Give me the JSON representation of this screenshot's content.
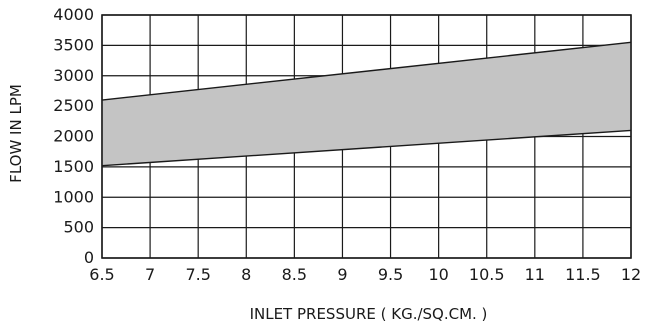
{
  "chart_data": {
    "type": "area",
    "title": "",
    "xlabel": "INLET PRESSURE ( KG./SQ.CM. )",
    "ylabel": "FLOW IN LPM",
    "xlim": [
      6.5,
      12
    ],
    "ylim": [
      0,
      4000
    ],
    "x_ticks": [
      6.5,
      7,
      7.5,
      8,
      8.5,
      9,
      9.5,
      10,
      10.5,
      11,
      11.5,
      12
    ],
    "x_tick_labels": [
      "6.5",
      "7",
      "7.5",
      "8",
      "8.5",
      "9",
      "9.5",
      "10",
      "10.5",
      "11",
      "11.5",
      "12"
    ],
    "y_ticks": [
      0,
      500,
      1000,
      1500,
      2000,
      2500,
      3000,
      3500,
      4000
    ],
    "y_tick_labels": [
      "0",
      "500",
      "1000",
      "1500",
      "2000",
      "2500",
      "3000",
      "3500",
      "4000"
    ],
    "grid": true,
    "legend": "none",
    "band": {
      "x": [
        6.5,
        12
      ],
      "lower": [
        1520,
        2100
      ],
      "upper": [
        2600,
        3550
      ]
    },
    "colors": {
      "band_fill": "#c4c4c4",
      "lines": "#1a1a1a",
      "grid": "#1a1a1a"
    }
  }
}
